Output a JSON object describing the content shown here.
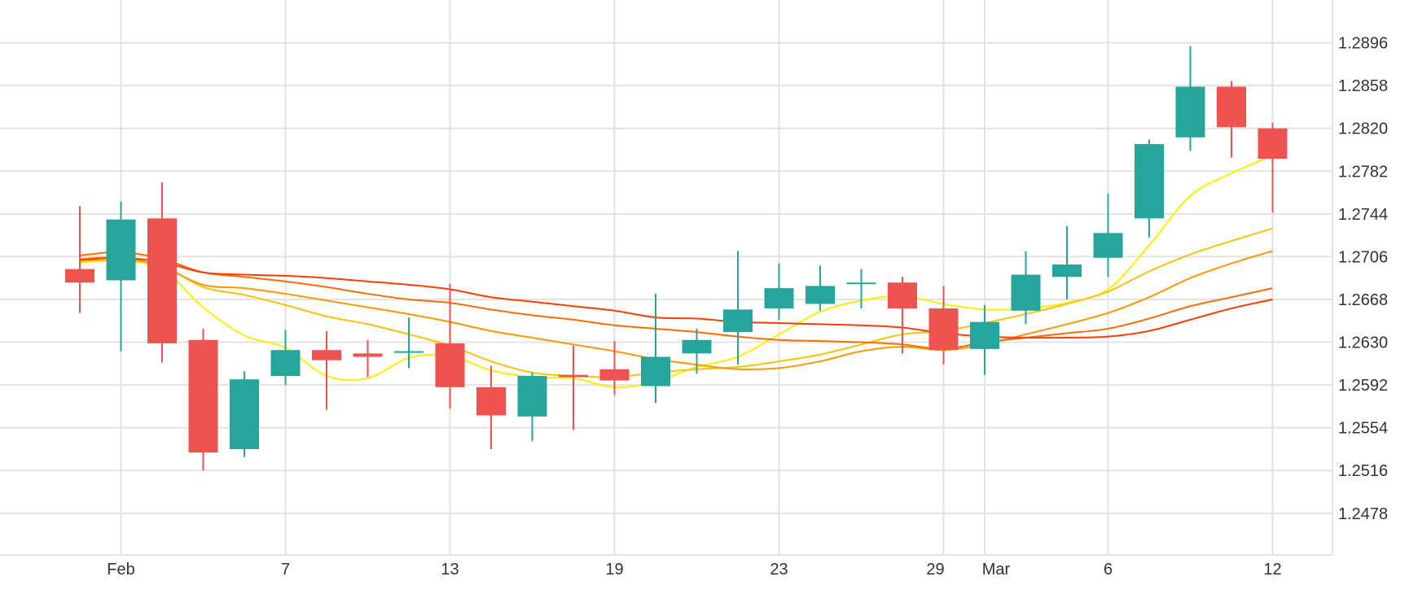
{
  "chart_data": {
    "type": "candlestick",
    "title": "",
    "xlabel": "",
    "ylabel": "",
    "x_tick_labels": [
      "Feb",
      "7",
      "13",
      "19",
      "23",
      "29",
      "Mar",
      "6",
      "12"
    ],
    "y_ticks": [
      "1.2896",
      "1.2858",
      "1.2820",
      "1.2782",
      "1.2744",
      "1.2706",
      "1.2668",
      "1.2630",
      "1.2592",
      "1.2554",
      "1.2516",
      "1.2478"
    ],
    "ylim": [
      1.2441,
      1.2934
    ],
    "y_axis_position": "right",
    "grid": true,
    "legend": "none",
    "colors": {
      "up": "#26a69a",
      "down": "#ef5350"
    },
    "candles": [
      {
        "x": "Jan 30",
        "open": 1.2695,
        "high": 1.2751,
        "low": 1.2656,
        "close": 1.2683
      },
      {
        "x": "Feb 1",
        "open": 1.2685,
        "high": 1.2755,
        "low": 1.2622,
        "close": 1.2739
      },
      {
        "x": "Feb 2",
        "open": 1.274,
        "high": 1.2772,
        "low": 1.2612,
        "close": 1.2629
      },
      {
        "x": "Feb 5",
        "open": 1.2632,
        "high": 1.2642,
        "low": 1.2516,
        "close": 1.2532
      },
      {
        "x": "Feb 6",
        "open": 1.2535,
        "high": 1.2604,
        "low": 1.2528,
        "close": 1.2597
      },
      {
        "x": "Feb 7",
        "open": 1.26,
        "high": 1.2641,
        "low": 1.2592,
        "close": 1.2623
      },
      {
        "x": "Feb 8",
        "open": 1.2623,
        "high": 1.264,
        "low": 1.257,
        "close": 1.2614
      },
      {
        "x": "Feb 9",
        "open": 1.262,
        "high": 1.2632,
        "low": 1.2599,
        "close": 1.2617
      },
      {
        "x": "Feb 12",
        "open": 1.2622,
        "high": 1.2652,
        "low": 1.2607,
        "close": 1.2622
      },
      {
        "x": "Feb 13",
        "open": 1.2629,
        "high": 1.2682,
        "low": 1.2571,
        "close": 1.259
      },
      {
        "x": "Feb 14",
        "open": 1.259,
        "high": 1.2609,
        "low": 1.2535,
        "close": 1.2565
      },
      {
        "x": "Feb 15",
        "open": 1.2564,
        "high": 1.2603,
        "low": 1.2542,
        "close": 1.26
      },
      {
        "x": "Feb 16",
        "open": 1.2601,
        "high": 1.2627,
        "low": 1.2552,
        "close": 1.2599
      },
      {
        "x": "Feb 19",
        "open": 1.2606,
        "high": 1.2631,
        "low": 1.2583,
        "close": 1.2596
      },
      {
        "x": "Feb 20",
        "open": 1.2591,
        "high": 1.2673,
        "low": 1.2576,
        "close": 1.2617
      },
      {
        "x": "Feb 21",
        "open": 1.262,
        "high": 1.2642,
        "low": 1.2602,
        "close": 1.2632
      },
      {
        "x": "Feb 22",
        "open": 1.2639,
        "high": 1.2711,
        "low": 1.261,
        "close": 1.2659
      },
      {
        "x": "Feb 23",
        "open": 1.266,
        "high": 1.27,
        "low": 1.265,
        "close": 1.2678
      },
      {
        "x": "Feb 26",
        "open": 1.2664,
        "high": 1.2698,
        "low": 1.2658,
        "close": 1.268
      },
      {
        "x": "Feb 27",
        "open": 1.2683,
        "high": 1.2695,
        "low": 1.266,
        "close": 1.2683
      },
      {
        "x": "Feb 28",
        "open": 1.2683,
        "high": 1.2688,
        "low": 1.262,
        "close": 1.266
      },
      {
        "x": "Feb 29",
        "open": 1.266,
        "high": 1.268,
        "low": 1.261,
        "close": 1.2623
      },
      {
        "x": "Mar 1",
        "open": 1.2624,
        "high": 1.2663,
        "low": 1.2601,
        "close": 1.2648
      },
      {
        "x": "Mar 4",
        "open": 1.2658,
        "high": 1.2711,
        "low": 1.2646,
        "close": 1.269
      },
      {
        "x": "Mar 5",
        "open": 1.2688,
        "high": 1.2733,
        "low": 1.2668,
        "close": 1.2699
      },
      {
        "x": "Mar 6",
        "open": 1.2705,
        "high": 1.2762,
        "low": 1.2688,
        "close": 1.2727
      },
      {
        "x": "Mar 7",
        "open": 1.274,
        "high": 1.281,
        "low": 1.2723,
        "close": 1.2806
      },
      {
        "x": "Mar 8",
        "open": 1.2812,
        "high": 1.2893,
        "low": 1.28,
        "close": 1.2857
      },
      {
        "x": "Mar 11",
        "open": 1.2857,
        "high": 1.2862,
        "low": 1.2794,
        "close": 1.2821
      },
      {
        "x": "Mar 12",
        "open": 1.282,
        "high": 1.2825,
        "low": 1.2745,
        "close": 1.2793
      }
    ],
    "moving_averages": [
      {
        "color": "#ffee00",
        "values": [
          1.2701,
          1.2702,
          1.2695,
          1.2661,
          1.2636,
          1.2625,
          1.26,
          1.2598,
          1.2616,
          1.2618,
          1.2605,
          1.2599,
          1.2598,
          1.259,
          1.2595,
          1.2608,
          1.2617,
          1.2637,
          1.2657,
          1.2667,
          1.2671,
          1.2664,
          1.2659,
          1.266,
          1.2665,
          1.2677,
          1.2716,
          1.276,
          1.278,
          1.2796
        ]
      },
      {
        "color": "#ffc107",
        "values": [
          1.2702,
          1.2703,
          1.2698,
          1.2679,
          1.2672,
          1.2663,
          1.2653,
          1.2646,
          1.2637,
          1.2627,
          1.2613,
          1.2603,
          1.26,
          1.2599,
          1.2603,
          1.2606,
          1.2608,
          1.2613,
          1.2619,
          1.2628,
          1.2637,
          1.264,
          1.2647,
          1.2655,
          1.2664,
          1.2675,
          1.2693,
          1.2708,
          1.272,
          1.2731
        ]
      },
      {
        "color": "#ff9800",
        "values": [
          1.2704,
          1.2705,
          1.2697,
          1.2681,
          1.2678,
          1.2673,
          1.2667,
          1.2661,
          1.2655,
          1.2648,
          1.264,
          1.2634,
          1.2628,
          1.2622,
          1.2615,
          1.261,
          1.2606,
          1.2607,
          1.2613,
          1.2622,
          1.2626,
          1.2623,
          1.2628,
          1.2637,
          1.2646,
          1.2656,
          1.267,
          1.2687,
          1.27,
          1.2711
        ]
      },
      {
        "color": "#ff6d00",
        "values": [
          1.2707,
          1.271,
          1.2704,
          1.2692,
          1.2688,
          1.2684,
          1.2679,
          1.2673,
          1.2668,
          1.2665,
          1.2659,
          1.2654,
          1.265,
          1.2645,
          1.2642,
          1.2639,
          1.2635,
          1.2632,
          1.2631,
          1.263,
          1.2628,
          1.2624,
          1.263,
          1.2634,
          1.2638,
          1.2642,
          1.2651,
          1.2662,
          1.267,
          1.2678
        ]
      },
      {
        "color": "#ff3d00",
        "values": [
          1.2703,
          1.2705,
          1.2701,
          1.2692,
          1.269,
          1.2689,
          1.2687,
          1.2684,
          1.2681,
          1.2677,
          1.267,
          1.2666,
          1.2662,
          1.2658,
          1.2652,
          1.2651,
          1.2648,
          1.2647,
          1.2646,
          1.2645,
          1.2643,
          1.2638,
          1.2635,
          1.2634,
          1.2634,
          1.2635,
          1.264,
          1.265,
          1.266,
          1.2668
        ]
      }
    ]
  }
}
